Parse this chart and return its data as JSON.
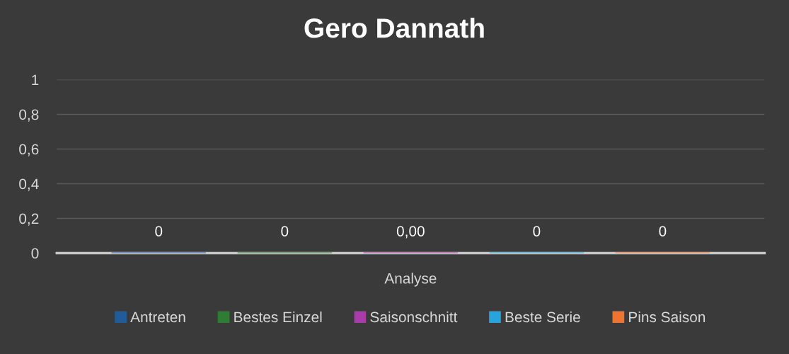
{
  "chart_data": {
    "type": "bar",
    "title": "Gero Dannath",
    "categories": [
      "Analyse"
    ],
    "series": [
      {
        "name": "Antreten",
        "color": "#1f5c99",
        "values": [
          0
        ],
        "value_labels": [
          "0"
        ]
      },
      {
        "name": "Bestes Einzel",
        "color": "#2e7d32",
        "values": [
          0
        ],
        "value_labels": [
          "0"
        ]
      },
      {
        "name": "Saisonschnitt",
        "color": "#a83ca8",
        "values": [
          0
        ],
        "value_labels": [
          "0,00"
        ]
      },
      {
        "name": "Beste Serie",
        "color": "#29a3dc",
        "values": [
          0
        ],
        "value_labels": [
          "0"
        ]
      },
      {
        "name": "Pins Saison",
        "color": "#ee7430",
        "values": [
          0
        ],
        "value_labels": [
          "0"
        ]
      }
    ],
    "ylim": [
      0,
      1
    ],
    "yticks": [
      0,
      {
        "value": 0.2,
        "label": "0,2"
      },
      {
        "value": 0.4,
        "label": "0,4"
      },
      {
        "value": 0.6,
        "label": "0,6"
      },
      {
        "value": 0.8,
        "label": "0,8"
      },
      1
    ],
    "grid": "y",
    "legend": "bottom"
  }
}
